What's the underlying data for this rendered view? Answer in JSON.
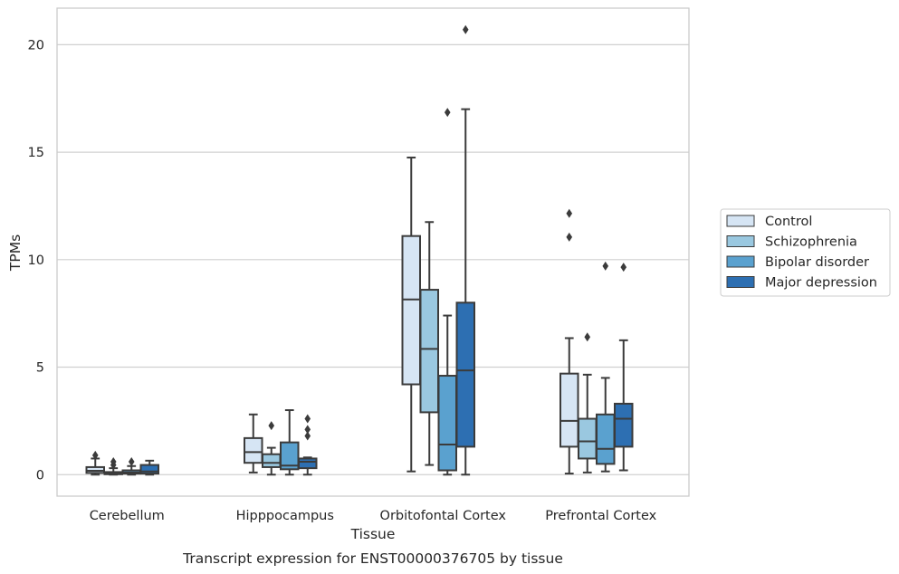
{
  "chart_data": {
    "type": "box",
    "title": "",
    "caption": "Transcript expression for ENST00000376705 by tissue",
    "xlabel": "Tissue",
    "ylabel": "TPMs",
    "ylim": [
      -1,
      21.7
    ],
    "yticks": [
      "0",
      "5",
      "10",
      "15",
      "20"
    ],
    "grid": "horizontal",
    "legend_position": "right",
    "categories": [
      "Cerebellum",
      "Hipppocampus",
      "Orbitofontal Cortex",
      "Prefrontal Cortex"
    ],
    "series": [
      {
        "name": "Control",
        "color": "#d6e5f4",
        "boxes": [
          {
            "whisker_low": 0.0,
            "q1": 0.08,
            "median": 0.18,
            "q3": 0.35,
            "whisker_high": 0.75,
            "outliers": [
              0.9
            ]
          },
          {
            "whisker_low": 0.1,
            "q1": 0.55,
            "median": 1.05,
            "q3": 1.7,
            "whisker_high": 2.8,
            "outliers": []
          },
          {
            "whisker_low": 0.15,
            "q1": 4.2,
            "median": 8.15,
            "q3": 11.1,
            "whisker_high": 14.75,
            "outliers": []
          },
          {
            "whisker_low": 0.05,
            "q1": 1.3,
            "median": 2.5,
            "q3": 4.7,
            "whisker_high": 6.35,
            "outliers": [
              11.05,
              12.15
            ]
          }
        ]
      },
      {
        "name": "Schizophrenia",
        "color": "#9ac8e0",
        "boxes": [
          {
            "whisker_low": 0.0,
            "q1": 0.02,
            "median": 0.06,
            "q3": 0.12,
            "whisker_high": 0.3,
            "outliers": [
              0.45,
              0.6
            ]
          },
          {
            "whisker_low": 0.0,
            "q1": 0.35,
            "median": 0.55,
            "q3": 0.95,
            "whisker_high": 1.25,
            "outliers": [
              2.28
            ]
          },
          {
            "whisker_low": 0.45,
            "q1": 2.9,
            "median": 5.85,
            "q3": 8.6,
            "whisker_high": 11.75,
            "outliers": []
          },
          {
            "whisker_low": 0.1,
            "q1": 0.75,
            "median": 1.55,
            "q3": 2.6,
            "whisker_high": 4.65,
            "outliers": [
              6.4
            ]
          }
        ]
      },
      {
        "name": "Bipolar disorder",
        "color": "#5aa1cf",
        "boxes": [
          {
            "whisker_low": 0.0,
            "q1": 0.05,
            "median": 0.1,
            "q3": 0.2,
            "whisker_high": 0.4,
            "outliers": [
              0.6
            ]
          },
          {
            "whisker_low": 0.0,
            "q1": 0.25,
            "median": 0.42,
            "q3": 1.5,
            "whisker_high": 3.0,
            "outliers": []
          },
          {
            "whisker_low": 0.0,
            "q1": 0.2,
            "median": 1.4,
            "q3": 4.6,
            "whisker_high": 7.4,
            "outliers": [
              16.85
            ]
          },
          {
            "whisker_low": 0.15,
            "q1": 0.5,
            "median": 1.2,
            "q3": 2.8,
            "whisker_high": 4.5,
            "outliers": [
              9.7
            ]
          }
        ]
      },
      {
        "name": "Major depression",
        "color": "#2d6fb2",
        "boxes": [
          {
            "whisker_low": 0.0,
            "q1": 0.05,
            "median": 0.15,
            "q3": 0.45,
            "whisker_high": 0.65,
            "outliers": []
          },
          {
            "whisker_low": 0.0,
            "q1": 0.3,
            "median": 0.6,
            "q3": 0.75,
            "whisker_high": 0.8,
            "outliers": [
              1.8,
              2.1,
              2.6
            ]
          },
          {
            "whisker_low": 0.0,
            "q1": 1.3,
            "median": 4.85,
            "q3": 8.0,
            "whisker_high": 17.0,
            "outliers": [
              20.7
            ]
          },
          {
            "whisker_low": 0.2,
            "q1": 1.3,
            "median": 2.6,
            "q3": 3.3,
            "whisker_high": 6.25,
            "outliers": [
              9.65
            ]
          }
        ]
      }
    ]
  }
}
